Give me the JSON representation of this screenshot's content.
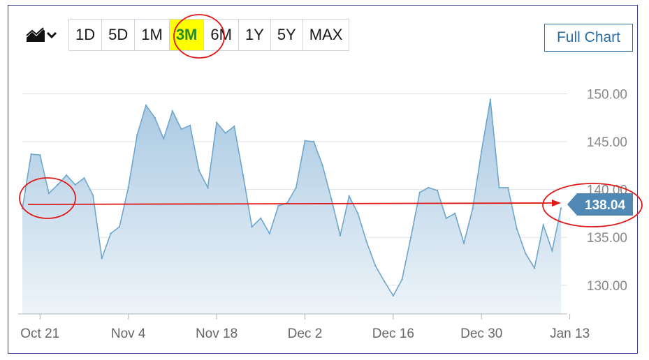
{
  "toolbar": {
    "chart_type_icon": "area-chart-icon",
    "dropdown_icon": "chevron-down-icon",
    "ranges": [
      "1D",
      "5D",
      "1M",
      "3M",
      "6M",
      "1Y",
      "5Y",
      "MAX"
    ],
    "active_range": "3M",
    "full_chart_label": "Full Chart"
  },
  "colors": {
    "line": "#6fa6cc",
    "fill_top": "#a9c9e2",
    "fill_bottom": "#eef4f9",
    "price_tag": "#4f87b5",
    "annotation": "#e01818",
    "highlight": "#ffff00"
  },
  "chart_data": {
    "type": "area",
    "title": "",
    "xlabel": "",
    "ylabel": "",
    "ylim": [
      127,
      152
    ],
    "yticks": [
      130,
      135,
      140,
      145,
      150
    ],
    "ytick_labels": [
      "130.00",
      "135.00",
      "140.00",
      "145.00",
      "150.00"
    ],
    "xtick_labels": [
      "Oct 21",
      "Nov 4",
      "Nov 18",
      "Dec 2",
      "Dec 16",
      "Dec 30",
      "Jan 13"
    ],
    "xtick_index": [
      2,
      12,
      22,
      32,
      42,
      52,
      62
    ],
    "current_price": 138.04,
    "current_price_label": "138.04",
    "series": [
      {
        "values": [
          138.0,
          143.7,
          143.6,
          139.6,
          140.5,
          141.5,
          140.5,
          141.2,
          139.4,
          132.8,
          135.4,
          136.1,
          140.2,
          145.7,
          148.8,
          147.5,
          145.3,
          148.2,
          146.3,
          146.7,
          142.0,
          140.2,
          147.0,
          145.9,
          146.6,
          141.5,
          136.1,
          137.0,
          135.4,
          138.3,
          138.6,
          140.2,
          145.1,
          145.0,
          142.5,
          139.0,
          135.2,
          139.3,
          137.5,
          134.5,
          132.0,
          130.4,
          128.9,
          130.6,
          135.0,
          139.7,
          140.2,
          139.9,
          137.0,
          137.5,
          134.4,
          138.0,
          144.0,
          149.4,
          140.2,
          140.2,
          135.9,
          133.3,
          131.8,
          136.3,
          133.6,
          138.04
        ]
      }
    ]
  }
}
